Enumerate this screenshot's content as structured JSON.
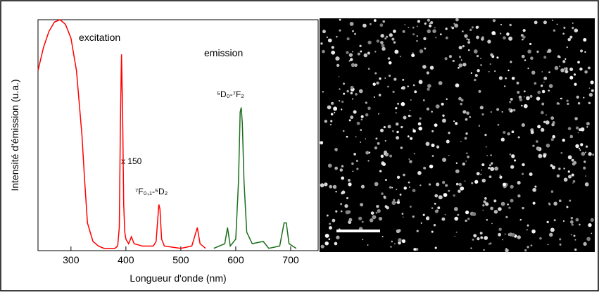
{
  "chart_data": {
    "type": "line",
    "xlabel": "Longueur d'onde (nm)",
    "ylabel": "Intensité d'émission (u.a.)",
    "xlim": [
      240,
      750
    ],
    "xticks": [
      300,
      400,
      500,
      600,
      700
    ],
    "ylim": [
      0,
      100
    ],
    "series": [
      {
        "name": "excitation",
        "color": "#ff0000",
        "x": [
          240,
          250,
          260,
          270,
          280,
          290,
          300,
          310,
          320,
          325,
          330,
          340,
          350,
          360,
          380,
          385,
          388,
          390,
          392,
          394,
          396,
          398,
          400,
          405,
          410,
          415,
          430,
          450,
          455,
          460,
          462,
          465,
          470,
          500,
          520,
          530,
          535,
          545
        ],
        "values": [
          78,
          88,
          95,
          99,
          100,
          98,
          92,
          78,
          50,
          30,
          12,
          4,
          2,
          1,
          1,
          2,
          10,
          55,
          85,
          60,
          20,
          8,
          5,
          3,
          6,
          3,
          2,
          2,
          4,
          20,
          18,
          5,
          2,
          1,
          2,
          10,
          3,
          1
        ]
      },
      {
        "name": "emission",
        "color": "#1a6e1a",
        "x": [
          560,
          580,
          585,
          590,
          600,
          605,
          608,
          610,
          612,
          615,
          620,
          630,
          650,
          660,
          680,
          688,
          692,
          697,
          710
        ],
        "values": [
          1,
          3,
          10,
          2,
          5,
          30,
          60,
          62,
          55,
          30,
          8,
          3,
          4,
          1,
          2,
          12,
          12,
          3,
          1
        ]
      }
    ],
    "annotations": [
      "x 150",
      "⁷F₀,₁-⁵D₂",
      "⁵D₀-⁷F₂"
    ]
  }
}
